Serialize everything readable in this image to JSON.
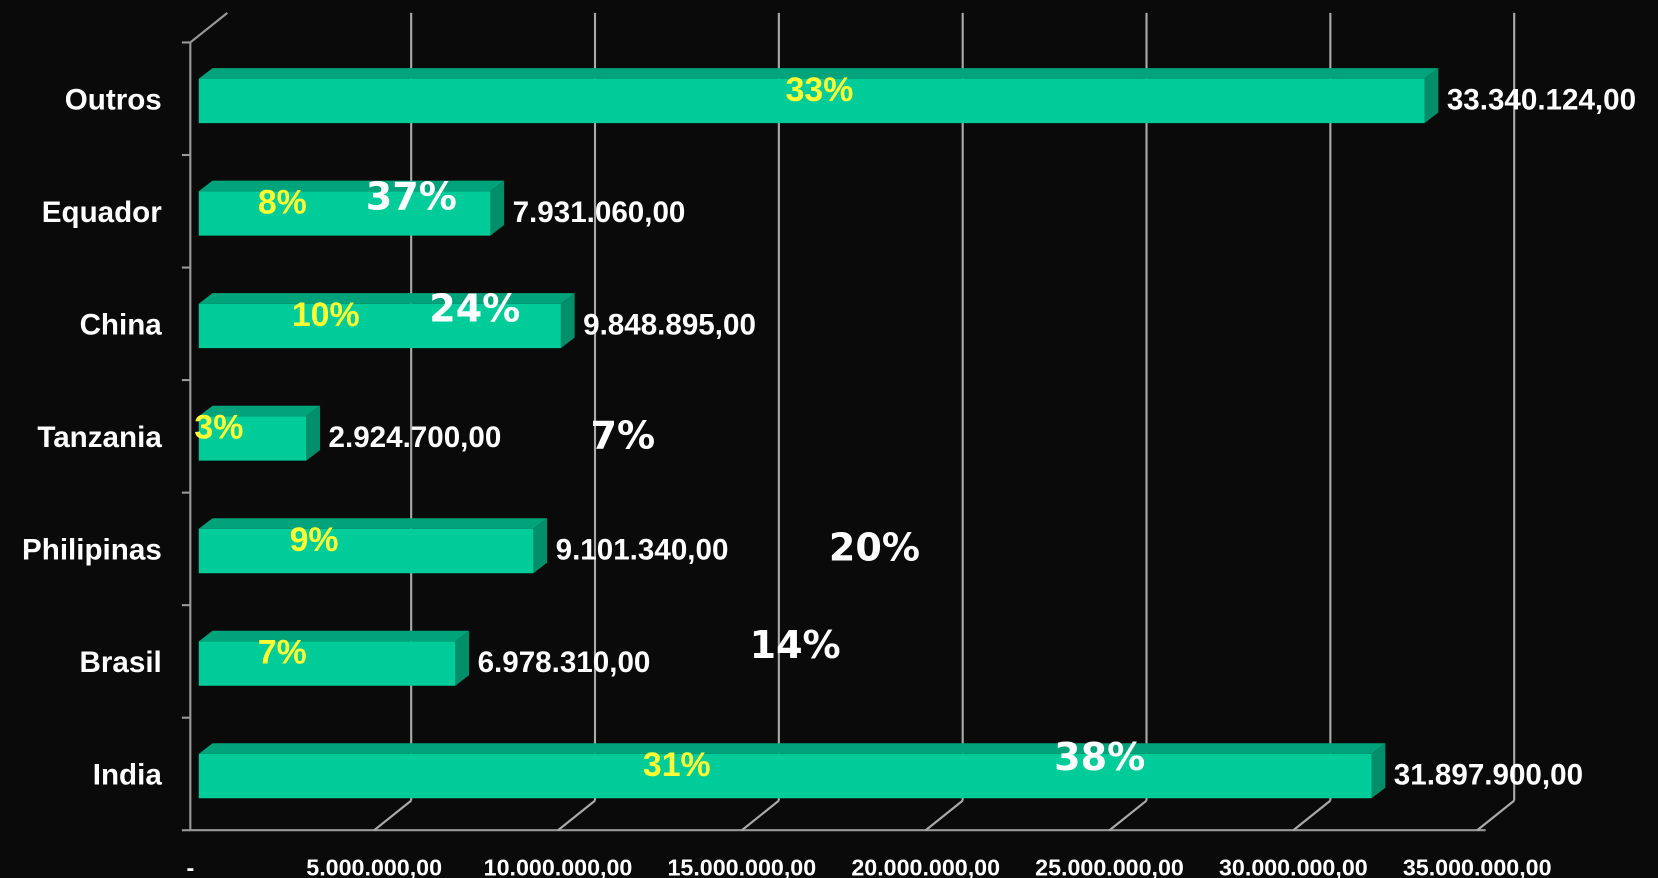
{
  "chart_data": {
    "type": "bar3d",
    "orientation": "horizontal",
    "categories": [
      "India",
      "Brasil",
      "Philipinas",
      "Tanzania",
      "China",
      "Equador",
      "Outros"
    ],
    "values": [
      31897900,
      6978310,
      9101340,
      2924700,
      9848895,
      7931060,
      33340124
    ],
    "value_labels": [
      "31.897.900,00",
      "6.978.310,00",
      "9.101.340,00",
      "2.924.700,00",
      "9.848.895,00",
      "7.931.060,00",
      "33.340.124,00"
    ],
    "share_labels": [
      "31%",
      "7%",
      "9%",
      "3%",
      "10%",
      "8%",
      "33%"
    ],
    "annotations": [
      "38%",
      "14%",
      "20%",
      "7%",
      "24%",
      "37%"
    ],
    "color": "#00cc99",
    "xlim": [
      0,
      35000000
    ],
    "xticks": [
      {
        "value": 0,
        "label": "-"
      },
      {
        "value": 5000000,
        "label": "5.000.000,00"
      },
      {
        "value": 10000000,
        "label": "10.000.000,00"
      },
      {
        "value": 15000000,
        "label": "15.000.000,00"
      },
      {
        "value": 20000000,
        "label": "20.000.000,00"
      },
      {
        "value": 25000000,
        "label": "25.000.000,00"
      },
      {
        "value": 30000000,
        "label": "30.000.000,00"
      },
      {
        "value": 35000000,
        "label": "35.000.000,00"
      }
    ],
    "grid": true
  }
}
